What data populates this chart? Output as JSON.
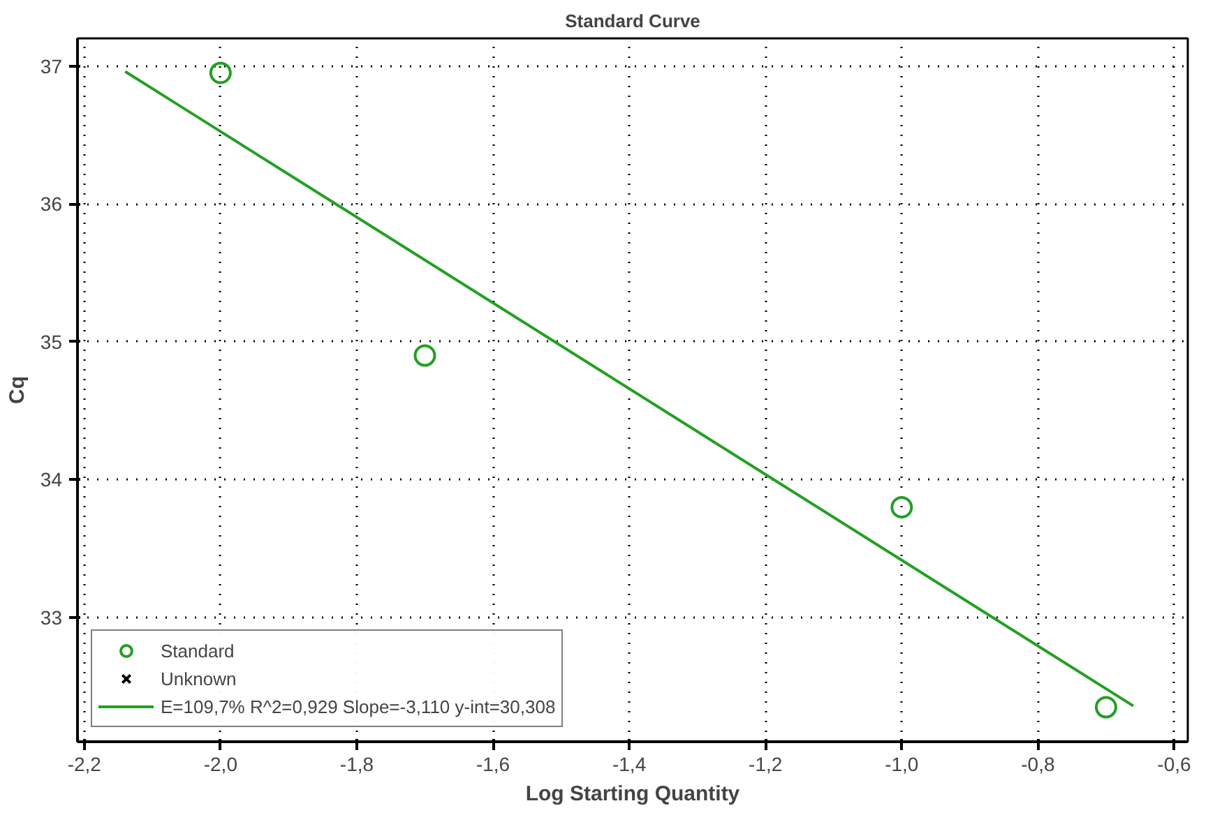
{
  "chart_data": {
    "type": "scatter",
    "title": "Standard Curve",
    "xlabel": "Log Starting Quantity",
    "ylabel": "Cq",
    "xlim": [
      -2.21,
      -0.58
    ],
    "ylim": [
      32.1,
      37.2
    ],
    "xticks": [
      {
        "value": -2.2,
        "label": "-2,2"
      },
      {
        "value": -2.0,
        "label": "-2,0"
      },
      {
        "value": -1.8,
        "label": "-1,8"
      },
      {
        "value": -1.6,
        "label": "-1,6"
      },
      {
        "value": -1.4,
        "label": "-1,4"
      },
      {
        "value": -1.2,
        "label": "-1,2"
      },
      {
        "value": -1.0,
        "label": "-1,0"
      },
      {
        "value": -0.8,
        "label": "-0,8"
      },
      {
        "value": -0.6,
        "label": "-0,6"
      }
    ],
    "yticks": [
      33,
      34,
      35,
      36,
      37
    ],
    "grid": true,
    "legend": "bottom left",
    "series": [
      {
        "name": "Standard",
        "marker": "circle",
        "color": "#22a022",
        "x": [
          -2.0,
          -1.7,
          -1.0,
          -0.7
        ],
        "values": [
          36.95,
          34.9,
          33.8,
          32.35
        ]
      },
      {
        "name": "Unknown",
        "type": "scatter",
        "marker": "cross",
        "color": "#000000"
      },
      {
        "name": "E=109,7% R^2=0,929 Slope=-3,110 y-int=30,308",
        "type": "line",
        "line_style": "solid",
        "color": "#22a022",
        "x": [
          -2.14,
          -0.66
        ],
        "values": [
          36.96,
          32.36
        ]
      }
    ]
  }
}
